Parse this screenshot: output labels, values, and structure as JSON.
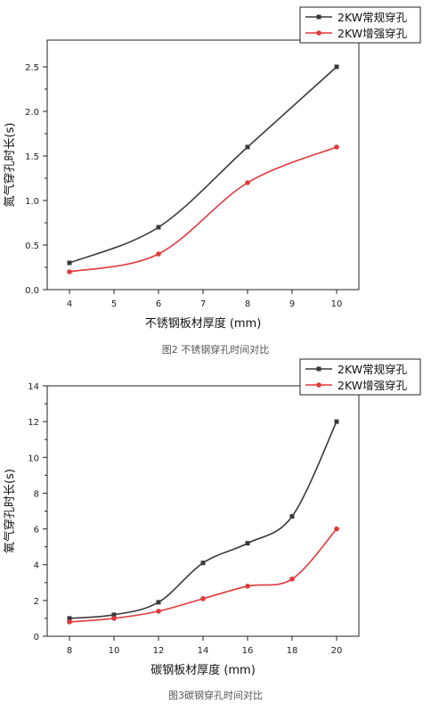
{
  "chart_data": [
    {
      "type": "line",
      "xlabel": "不锈钢板材厚度 (mm)",
      "ylabel": "氮气穿孔时长(s)",
      "x": [
        4,
        6,
        8,
        10
      ],
      "xlim": [
        3.5,
        10.5
      ],
      "ylim": [
        0,
        2.8
      ],
      "xticks": [
        "4",
        "5",
        "6",
        "7",
        "8",
        "9",
        "10"
      ],
      "yticks": [
        "0.0",
        "0.5",
        "1.0",
        "1.5",
        "2.0",
        "2.5"
      ],
      "legend_position": "top-right",
      "grid": false,
      "series": [
        {
          "name": "2KW常规穿孔",
          "color": "#3a3a3a",
          "values": [
            0.3,
            0.7,
            1.6,
            2.5
          ]
        },
        {
          "name": "2KW增强穿孔",
          "color": "#e0393b",
          "values": [
            0.2,
            0.4,
            1.2,
            1.6
          ]
        }
      ],
      "caption": "图2 不锈钢穿孔时间对比"
    },
    {
      "type": "line",
      "xlabel": "碳钢板材厚度 (mm)",
      "ylabel": "氧气穿孔时长(s)",
      "x": [
        8,
        10,
        12,
        14,
        16,
        18,
        20
      ],
      "xlim": [
        7,
        21
      ],
      "ylim": [
        0,
        14
      ],
      "xticks": [
        "8",
        "10",
        "12",
        "14",
        "16",
        "18",
        "20"
      ],
      "yticks": [
        "0",
        "2",
        "4",
        "6",
        "8",
        "10",
        "12",
        "14"
      ],
      "legend_position": "top-right",
      "grid": false,
      "series": [
        {
          "name": "2KW常规穿孔",
          "color": "#3a3a3a",
          "values": [
            1.0,
            1.2,
            1.9,
            4.1,
            5.2,
            6.7,
            12.0
          ]
        },
        {
          "name": "2KW增强穿孔",
          "color": "#e0393b",
          "values": [
            0.8,
            1.0,
            1.4,
            2.1,
            2.8,
            3.2,
            6.0
          ]
        }
      ],
      "caption": "图3碳钢穿孔时间对比"
    }
  ]
}
